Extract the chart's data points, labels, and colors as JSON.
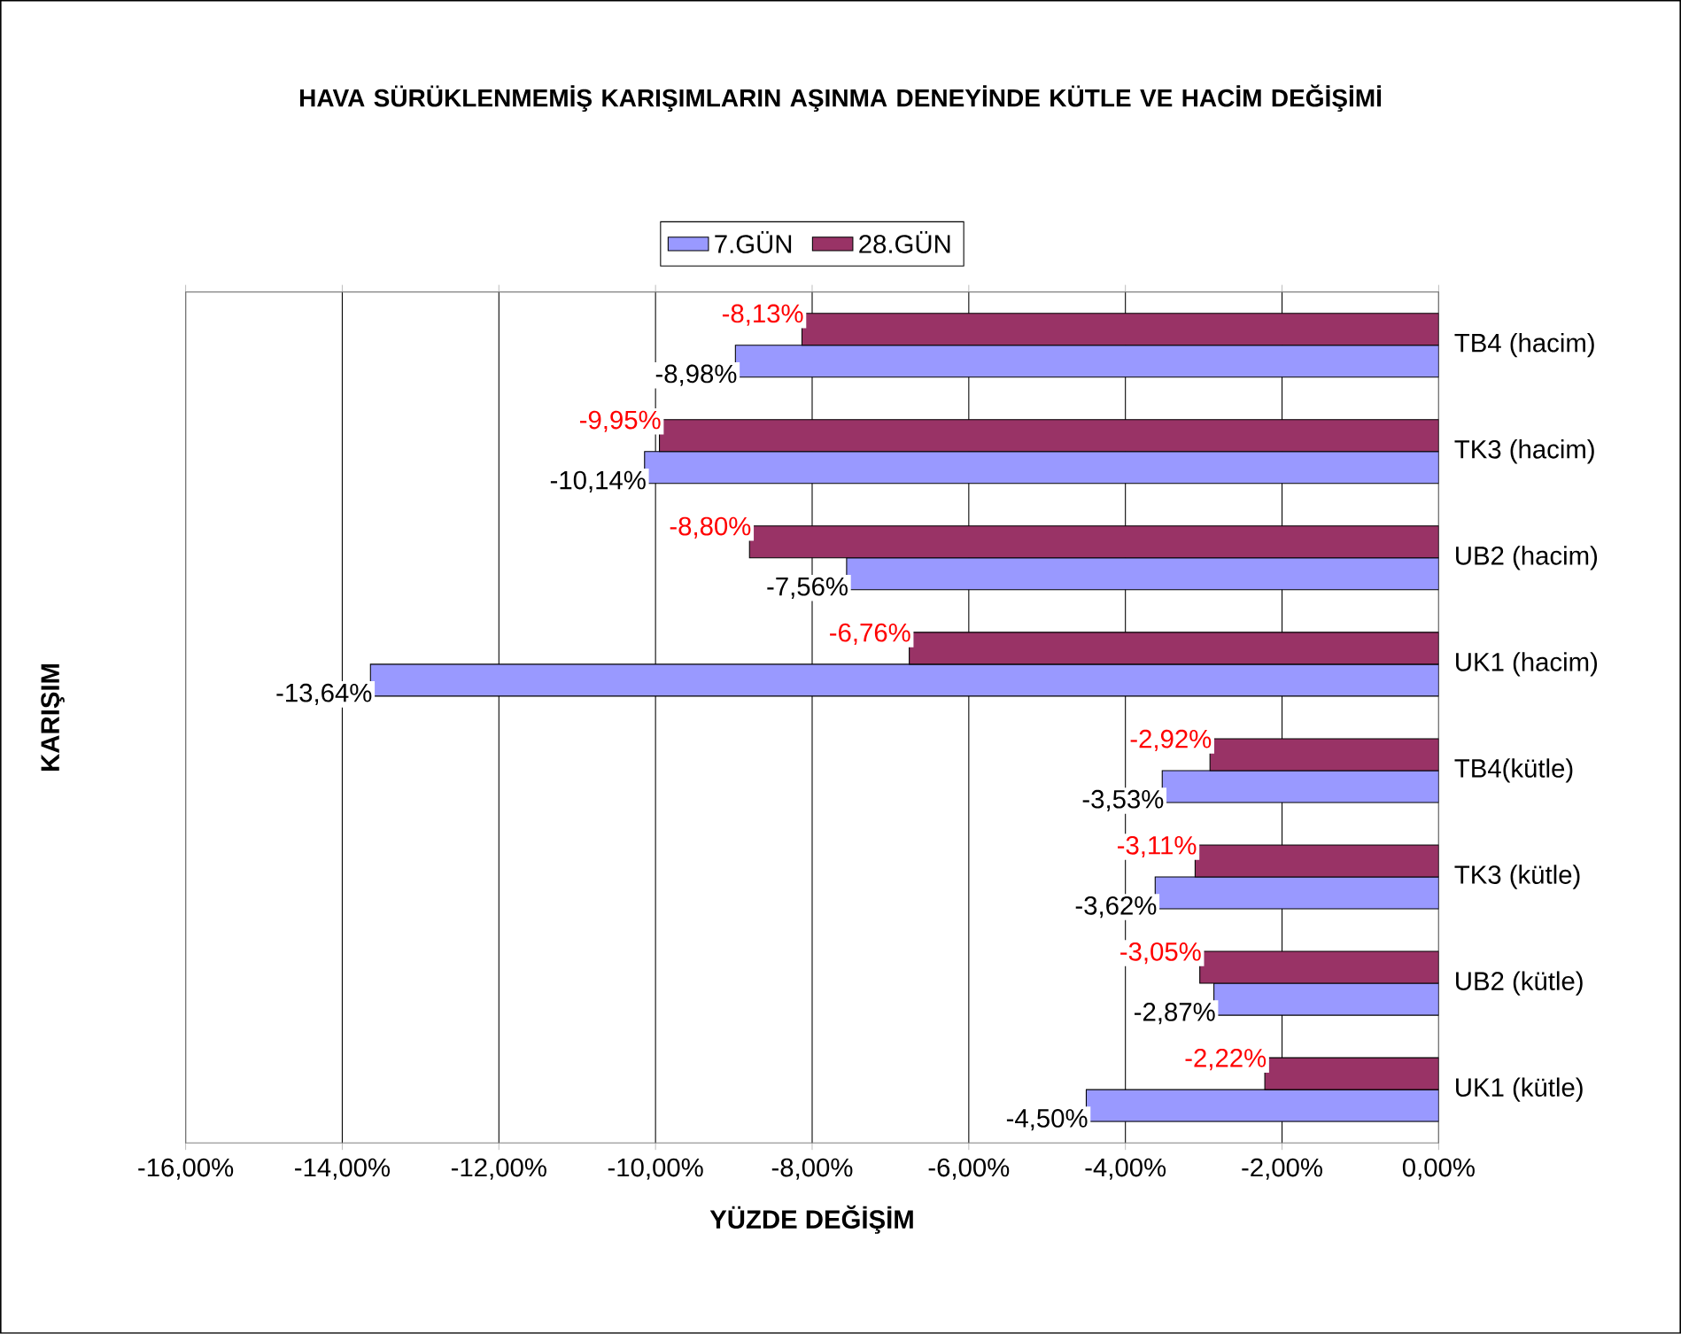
{
  "chart_data": {
    "type": "bar",
    "orientation": "horizontal",
    "title": "HAVA SÜRÜKLENMEMİŞ KARIŞIMLARIN AŞINMA DENEYİNDE KÜTLE VE HACİM DEĞİŞİMİ",
    "xlabel": "YÜZDE DEĞİŞİM",
    "ylabel": "KARIŞIM",
    "categories": [
      "TB4 (hacim)",
      "TK3 (hacim)",
      "UB2 (hacim)",
      "UK1 (hacim)",
      "TB4(kütle)",
      "TK3 (kütle)",
      "UB2 (kütle)",
      "UK1 (kütle)"
    ],
    "series": [
      {
        "name": "7.GÜN",
        "color": "#9999ff",
        "values": [
          -8.98,
          -10.14,
          -7.56,
          -13.64,
          -3.53,
          -3.62,
          -2.87,
          -4.5
        ],
        "value_labels": [
          "-8,98%",
          "-10,14%",
          "-7,56%",
          "-13,64%",
          "-3,53%",
          "-3,62%",
          "-2,87%",
          "-4,50%"
        ]
      },
      {
        "name": "28.GÜN",
        "color": "#993366",
        "values": [
          -8.13,
          -9.95,
          -8.8,
          -6.76,
          -2.92,
          -3.11,
          -3.05,
          -2.22
        ],
        "value_labels": [
          "-8,13%",
          "-9,95%",
          "-8,80%",
          "-6,76%",
          "-2,92%",
          "-3,11%",
          "-3,05%",
          "-2,22%"
        ]
      }
    ],
    "xlim": [
      -16,
      0
    ],
    "xticks": [
      {
        "value": -16,
        "label": "-16,00%"
      },
      {
        "value": -14,
        "label": "-14,00%"
      },
      {
        "value": -12,
        "label": "-12,00%"
      },
      {
        "value": -10,
        "label": "-10,00%"
      },
      {
        "value": -8,
        "label": "-8,00%"
      },
      {
        "value": -6,
        "label": "-6,00%"
      },
      {
        "value": -4,
        "label": "-4,00%"
      },
      {
        "value": -2,
        "label": "-2,00%"
      },
      {
        "value": 0,
        "label": "0,00%"
      }
    ],
    "grid": "x",
    "legend": "top"
  }
}
